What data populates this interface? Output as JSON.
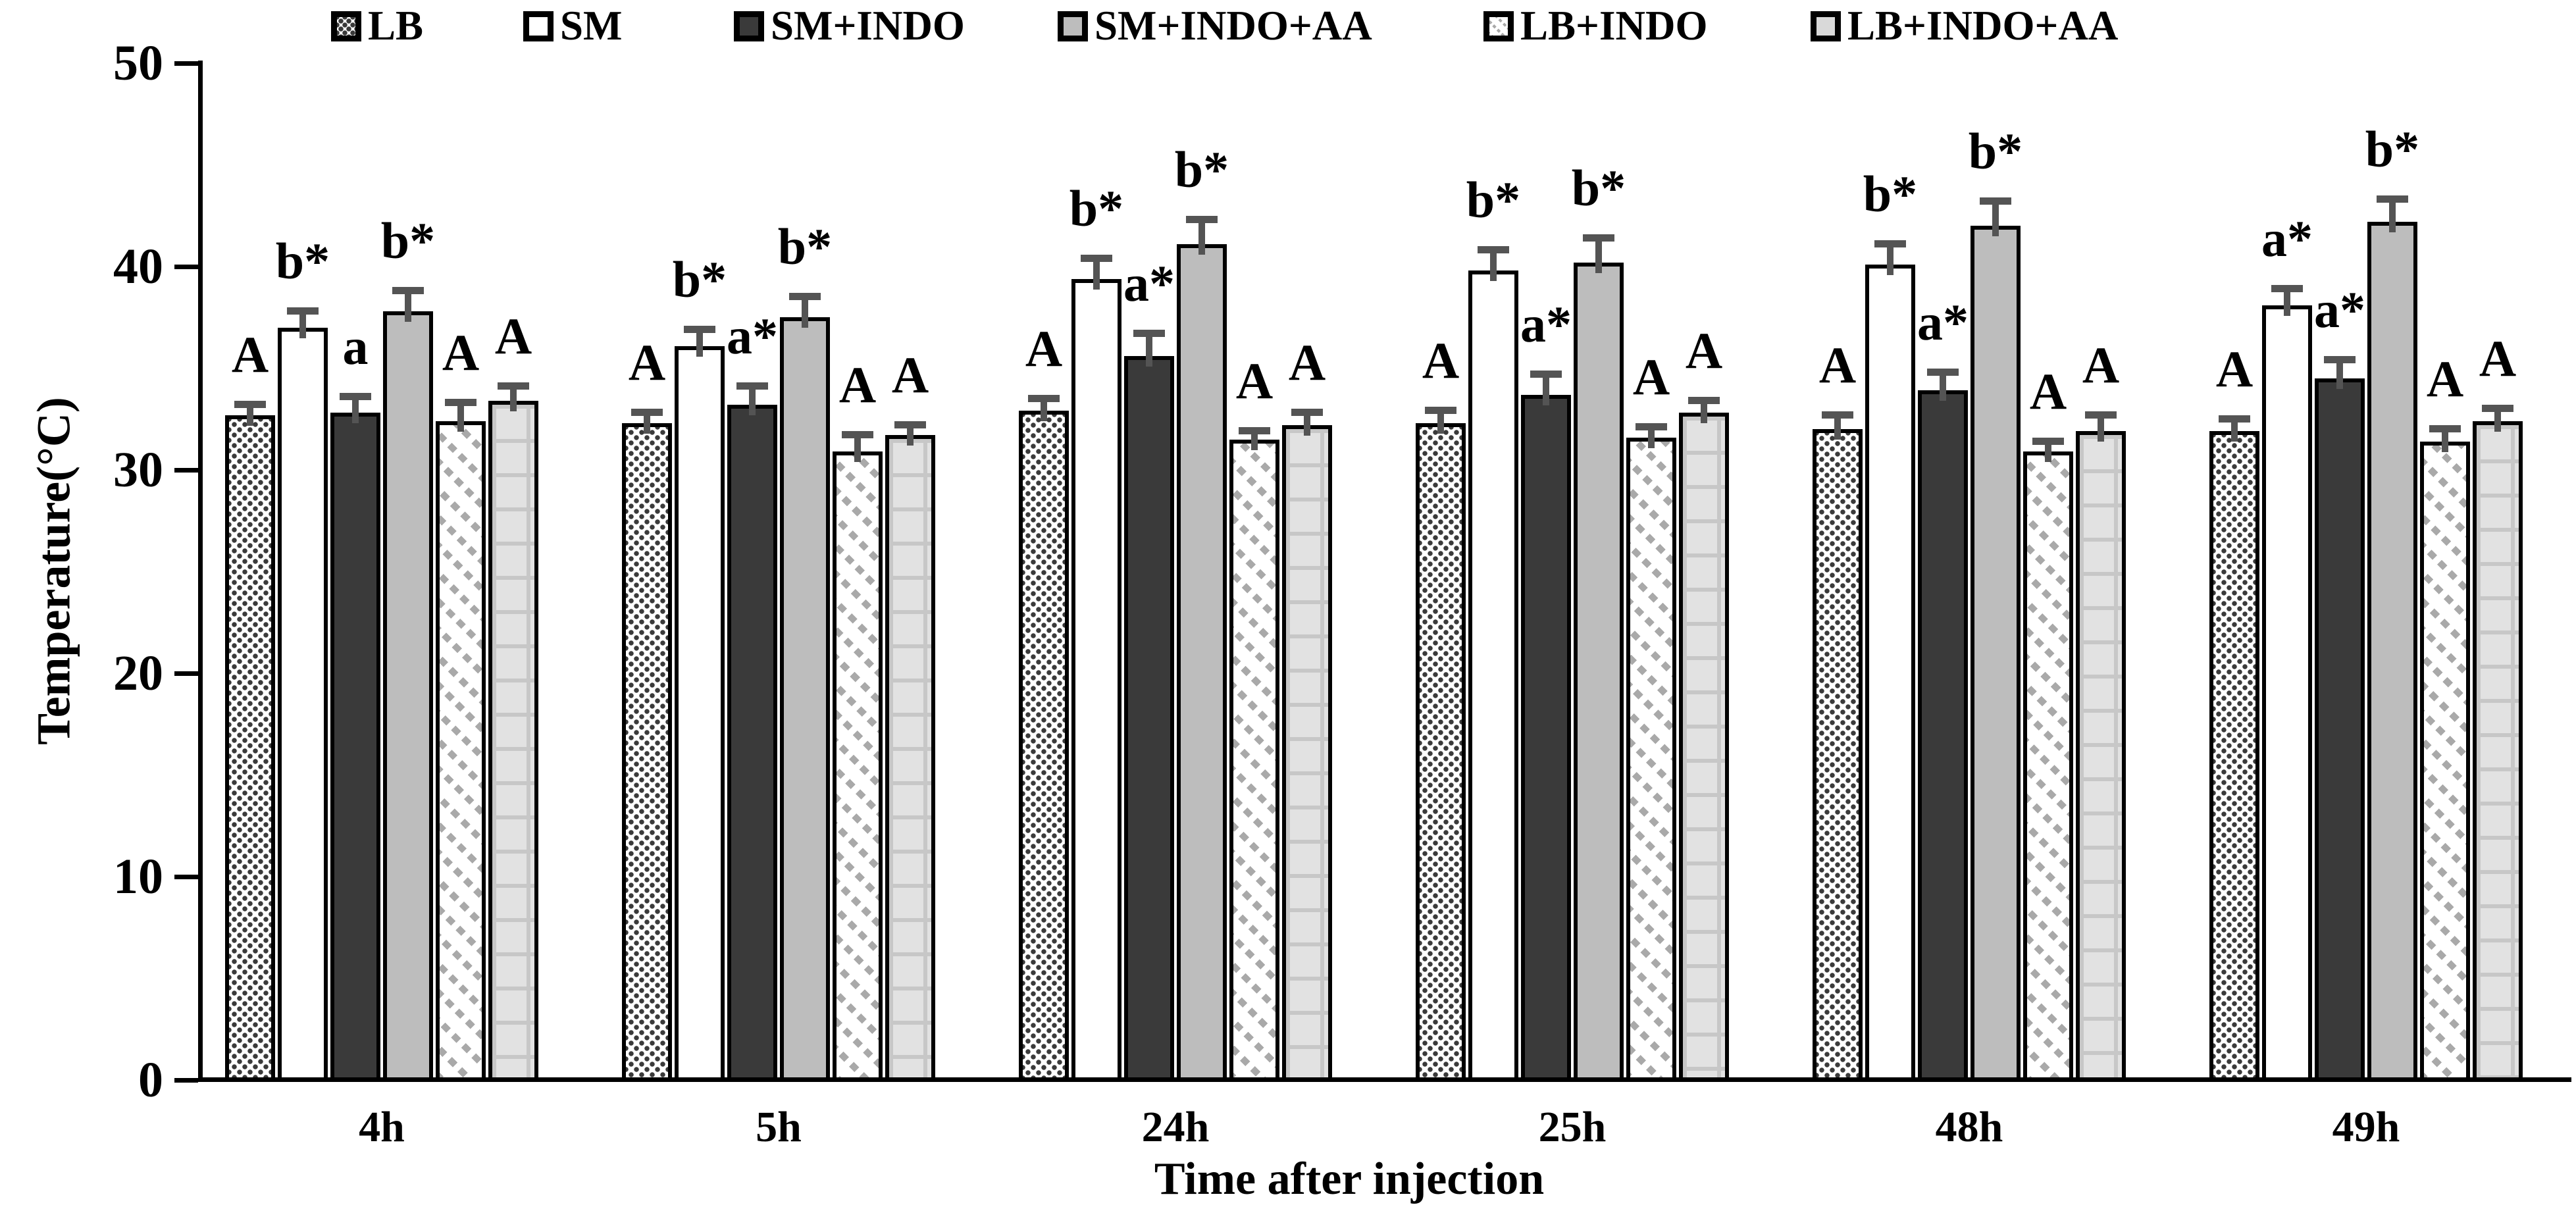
{
  "colors": {
    "outline": "#000000",
    "bar_dark": "#3a3a3a",
    "bar_gray": "#bdbdbd",
    "bar_light_grid": "#e2e2e2",
    "diagonal_hatch_gray": "#a9a9a9",
    "error_bar_gray": "#545454",
    "background": "#ffffff"
  },
  "chart_data": {
    "type": "bar",
    "title": "",
    "xlabel": "Time after injection",
    "ylabel": "Temperature(°C)",
    "ylim": [
      0,
      50
    ],
    "yticks": [
      0,
      10,
      20,
      30,
      40,
      50
    ],
    "grid": false,
    "legend_position": "top",
    "categories": [
      "4h",
      "5h",
      "24h",
      "25h",
      "48h",
      "49h"
    ],
    "series": [
      {
        "name": "LB",
        "pattern": "dots",
        "values": [
          32.7,
          32.3,
          32.9,
          32.3,
          32.0,
          31.9
        ],
        "errors": [
          0.5,
          0.5,
          0.6,
          0.6,
          0.7,
          0.6
        ],
        "sig_labels": [
          "A",
          "A",
          "A",
          "A",
          "A",
          "A"
        ]
      },
      {
        "name": "SM",
        "pattern": "solid-white",
        "values": [
          37.0,
          36.1,
          39.4,
          39.8,
          40.1,
          38.1
        ],
        "errors": [
          0.8,
          0.8,
          1.0,
          1.0,
          1.0,
          0.8
        ],
        "sig_labels": [
          "b*",
          "b*",
          "b*",
          "b*",
          "b*",
          "a*"
        ]
      },
      {
        "name": "SM+INDO",
        "pattern": "solid-dark",
        "values": [
          32.8,
          33.2,
          35.6,
          33.7,
          33.9,
          34.5
        ],
        "errors": [
          0.8,
          0.9,
          1.1,
          1.0,
          0.9,
          0.9
        ],
        "sig_labels": [
          "a",
          "a*",
          "a*",
          "a*",
          "a*",
          "a*"
        ]
      },
      {
        "name": "SM+INDO+AA",
        "pattern": "solid-gray",
        "values": [
          37.8,
          37.5,
          41.1,
          40.2,
          42.0,
          42.2
        ],
        "errors": [
          1.0,
          1.0,
          1.2,
          1.2,
          1.2,
          1.1
        ],
        "sig_labels": [
          "b*",
          "b*",
          "b*",
          "b*",
          "b*",
          "b*"
        ]
      },
      {
        "name": "LB+INDO",
        "pattern": "diagonal-dots",
        "values": [
          32.4,
          30.9,
          31.5,
          31.6,
          30.9,
          31.4
        ],
        "errors": [
          0.9,
          0.8,
          0.4,
          0.5,
          0.5,
          0.6
        ],
        "sig_labels": [
          "A",
          "A",
          "A",
          "A",
          "A",
          "A"
        ]
      },
      {
        "name": "LB+INDO+AA",
        "pattern": "grid-light",
        "values": [
          33.4,
          31.7,
          32.2,
          32.8,
          31.9,
          32.4
        ],
        "errors": [
          0.7,
          0.5,
          0.6,
          0.6,
          0.8,
          0.6
        ],
        "sig_labels": [
          "A",
          "A",
          "A",
          "A",
          "A",
          "A"
        ]
      }
    ]
  }
}
